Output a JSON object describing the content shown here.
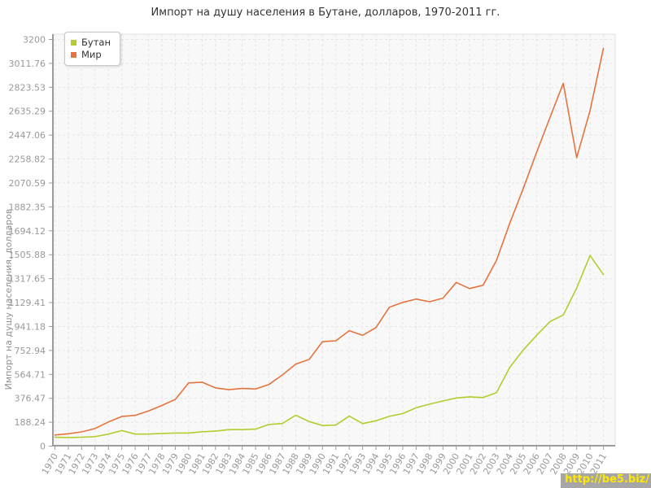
{
  "title": "Импорт на душу населения в Бутане, долларов, 1970-2011 гг.",
  "watermark": {
    "text": "http://be5.biz/"
  },
  "colors": {
    "bhutan_series": "#b4cc2e",
    "world_series": "#e4733f",
    "plot_bg": "#f8f8f8",
    "plot_border": "#e0e0e0",
    "grid": "#e5e5e5",
    "axis": "#9b9b9b",
    "tick_text": "#999999",
    "title_text": "#333333",
    "watermark_bg": "#a6a6a6",
    "watermark_text": "#ffe900"
  },
  "y_axis": {
    "label": "Импорт на душу населения, долларов",
    "tick_labels": [
      "0",
      "188.24",
      "376.47",
      "564.71",
      "752.94",
      "941.18",
      "1129.41",
      "1317.65",
      "1505.88",
      "1694.12",
      "1882.35",
      "2070.59",
      "2258.82",
      "2447.06",
      "2635.29",
      "2823.53",
      "3011.76",
      "3200"
    ]
  },
  "chart_data": {
    "type": "line",
    "title": "Импорт на душу населения в Бутане, долларов, 1970-2011 гг.",
    "ylabel": "Импорт на душу населения, долларов",
    "xlabel": "",
    "ylim": [
      0,
      3200
    ],
    "grid": true,
    "legend_position": "top-left",
    "x": [
      "1970",
      "1971",
      "1972",
      "1973",
      "1974",
      "1975",
      "1976",
      "1977",
      "1978",
      "1979",
      "1980",
      "1981",
      "1982",
      "1983",
      "1984",
      "1985",
      "1986",
      "1987",
      "1988",
      "1989",
      "1990",
      "1991",
      "1992",
      "1993",
      "1994",
      "1995",
      "1996",
      "1997",
      "1998",
      "1999",
      "2000",
      "2001",
      "2002",
      "2003",
      "2004",
      "2005",
      "2006",
      "2007",
      "2008",
      "2009",
      "2010",
      "2011"
    ],
    "series": [
      {
        "name": "Бутан",
        "color": "#b4cc2e",
        "values": [
          70,
          68,
          70,
          74,
          95,
          122,
          95,
          95,
          100,
          103,
          103,
          113,
          118,
          130,
          130,
          134,
          170,
          178,
          243,
          193,
          162,
          166,
          236,
          177,
          200,
          234,
          256,
          302,
          330,
          355,
          379,
          388,
          382,
          420,
          620,
          756,
          871,
          980,
          1032,
          1245,
          1500,
          1350
        ]
      },
      {
        "name": "Мир",
        "color": "#e4733f",
        "values": [
          88,
          97,
          112,
          138,
          190,
          233,
          242,
          277,
          320,
          368,
          497,
          503,
          458,
          444,
          454,
          450,
          485,
          560,
          645,
          682,
          822,
          829,
          908,
          872,
          933,
          1093,
          1131,
          1157,
          1136,
          1164,
          1288,
          1240,
          1266,
          1460,
          1755,
          2025,
          2310,
          2585,
          2855,
          2270,
          2640,
          3130
        ]
      }
    ]
  }
}
